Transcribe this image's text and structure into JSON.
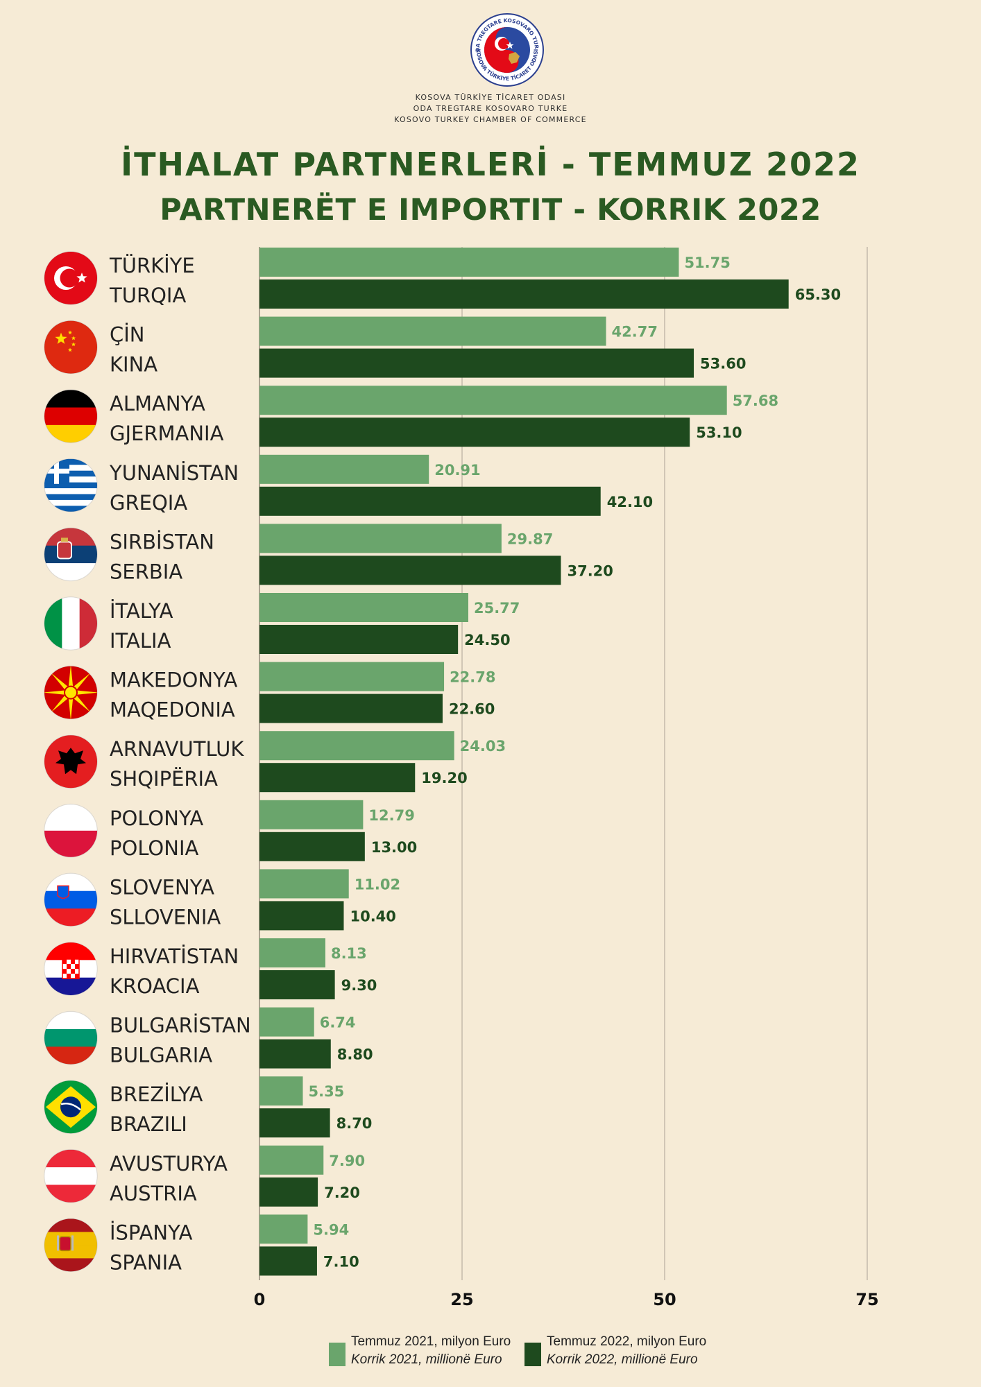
{
  "header": {
    "logo_ring_text_top": "ODA TREGTARE KOSOVARO TURKE",
    "logo_ring_text_bottom": "KOSOVA TÜRKİYE TİCARET ODASI",
    "org_lines": [
      "KOSOVA TÜRKİYE TİCARET ODASI",
      "ODA TREGTARE KOSOVARO TURKE",
      "KOSOVO TURKEY CHAMBER OF COMMERCE"
    ],
    "title_line_1": "İTHALAT PARTNERLERİ - TEMMUZ 2022",
    "title_line_2": "PARTNERËT E IMPORTIT - KORRIK 2022"
  },
  "colors": {
    "background": "#f6ebd6",
    "series_2021": "#6aa56c",
    "series_2022": "#1e4a1e",
    "title": "#2a5a22",
    "gridline": "#bdb3a4"
  },
  "chart_data": {
    "type": "bar",
    "orientation": "horizontal",
    "categories": [
      {
        "label_tr": "TÜRKİYE",
        "label_sq": "TURQIA",
        "flag": "turkey-flag-icon"
      },
      {
        "label_tr": "ÇİN",
        "label_sq": "KINA",
        "flag": "china-flag-icon"
      },
      {
        "label_tr": "ALMANYA",
        "label_sq": "GJERMANIA",
        "flag": "germany-flag-icon"
      },
      {
        "label_tr": "YUNANİSTAN",
        "label_sq": "GREQIA",
        "flag": "greece-flag-icon"
      },
      {
        "label_tr": "SIRBİSTAN",
        "label_sq": "SERBIA",
        "flag": "serbia-flag-icon"
      },
      {
        "label_tr": "İTALYA",
        "label_sq": "ITALIA",
        "flag": "italy-flag-icon"
      },
      {
        "label_tr": "MAKEDONYA",
        "label_sq": "MAQEDONIA",
        "flag": "north-macedonia-flag-icon"
      },
      {
        "label_tr": "ARNAVUTLUK",
        "label_sq": "SHQIPËRIA",
        "flag": "albania-flag-icon"
      },
      {
        "label_tr": "POLONYA",
        "label_sq": "POLONIA",
        "flag": "poland-flag-icon"
      },
      {
        "label_tr": "SLOVENYA",
        "label_sq": "SLLOVENIA",
        "flag": "slovenia-flag-icon"
      },
      {
        "label_tr": "HIRVATİSTAN",
        "label_sq": "KROACIA",
        "flag": "croatia-flag-icon"
      },
      {
        "label_tr": "BULGARİSTAN",
        "label_sq": "BULGARIA",
        "flag": "bulgaria-flag-icon"
      },
      {
        "label_tr": "BREZİLYA",
        "label_sq": "BRAZILI",
        "flag": "brazil-flag-icon"
      },
      {
        "label_tr": "AVUSTURYA",
        "label_sq": "AUSTRIA",
        "flag": "austria-flag-icon"
      },
      {
        "label_tr": "İSPANYA",
        "label_sq": "SPANIA",
        "flag": "spain-flag-icon"
      }
    ],
    "series": [
      {
        "name_tr": "Temmuz  2021, milyon Euro",
        "name_sq": "Korrik 2021, millionë Euro",
        "color": "#6aa56c",
        "values": [
          51.75,
          42.77,
          57.68,
          20.91,
          29.87,
          25.77,
          22.78,
          24.03,
          12.79,
          11.02,
          8.13,
          6.74,
          5.35,
          7.9,
          5.94
        ],
        "labels": [
          "51.75",
          "42.77",
          "57.68",
          "20.91",
          "29.87",
          "25.77",
          "22.78",
          "24.03",
          "12.79",
          "11.02",
          "8.13",
          "6.74",
          "5.35",
          "7.90",
          "5.94"
        ]
      },
      {
        "name_tr": "Temmuz 2022, milyon Euro",
        "name_sq": "Korrik 2022, millionë Euro",
        "color": "#1e4a1e",
        "values": [
          65.3,
          53.6,
          53.1,
          42.1,
          37.2,
          24.5,
          22.6,
          19.2,
          13.0,
          10.4,
          9.3,
          8.8,
          8.7,
          7.2,
          7.1
        ],
        "labels": [
          "65.30",
          "53.60",
          "53.10",
          "42.10",
          "37.20",
          "24.50",
          "22.60",
          "19.20",
          "13.00",
          "10.40",
          "9.30",
          "8.80",
          "8.70",
          "7.20",
          "7.10"
        ]
      }
    ],
    "x_ticks": [
      "0",
      "25",
      "50",
      "75"
    ],
    "x_tick_values": [
      0,
      25,
      50,
      75
    ],
    "xlim": [
      0,
      75
    ],
    "grid": true,
    "legend_position": "bottom-center"
  }
}
